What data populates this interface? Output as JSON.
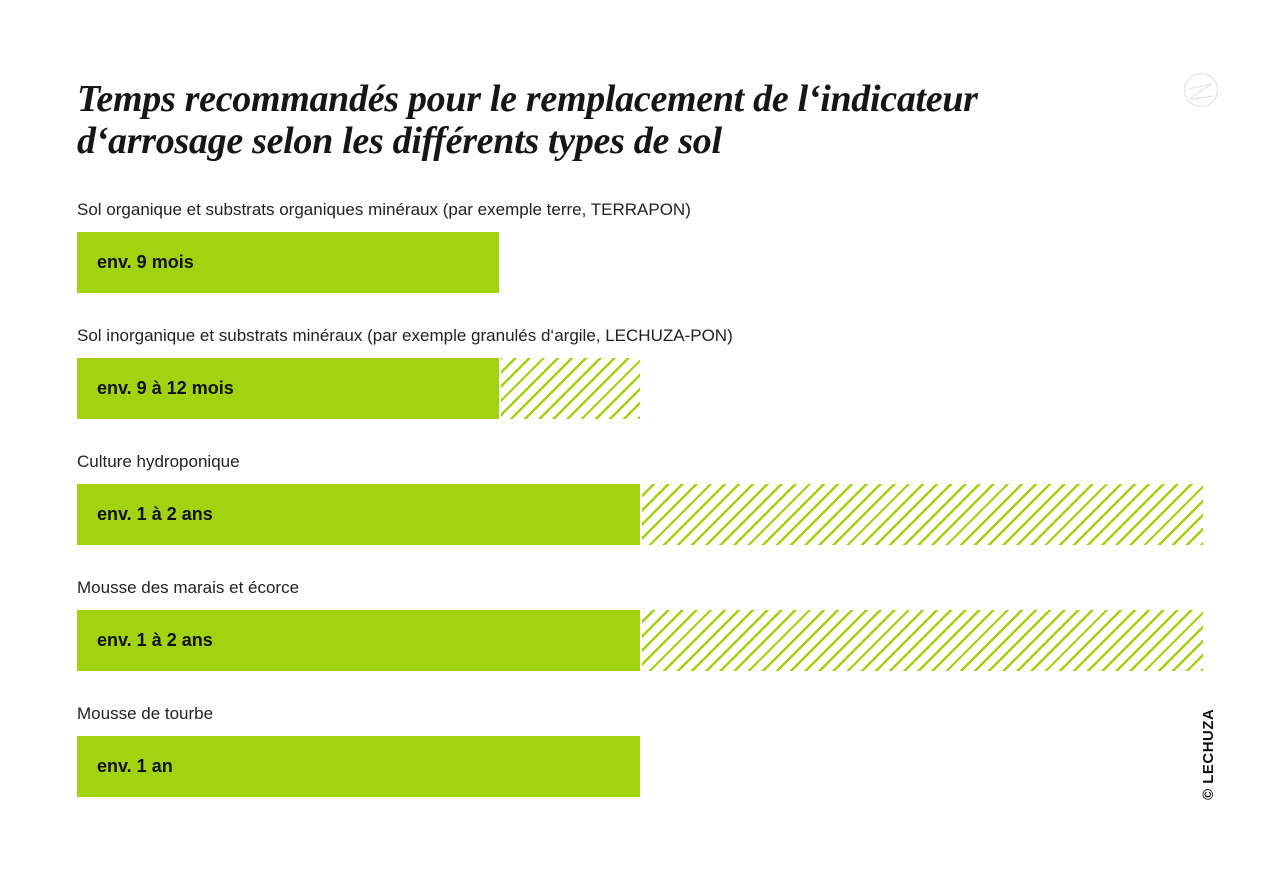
{
  "chart_data": {
    "type": "bar",
    "orientation": "horizontal",
    "title": "Temps recommandés pour le remplacement de l‘indicateur d‘arrosage selon les différents types de sol",
    "unit": "months",
    "xlim": [
      0,
      24
    ],
    "grid": false,
    "colors": {
      "bar": "#a3d30f",
      "range_hatch": "#a3d30f"
    },
    "categories": [
      "Sol organique et substrats organiques minéraux (par exemple terre, TERRAPON)",
      "Sol inorganique et substrats minéraux (par exemple granulés d‘argile, LECHUZA-PON)",
      "Culture hydroponique",
      "Mousse des marais et écorce",
      "Mousse de tourbe"
    ],
    "bars": [
      {
        "min": 9,
        "max": 9,
        "label": "env. 9 mois"
      },
      {
        "min": 9,
        "max": 12,
        "label": "env. 9 à 12 mois"
      },
      {
        "min": 12,
        "max": 24,
        "label": "env. 1 à 2 ans"
      },
      {
        "min": 12,
        "max": 24,
        "label": "env. 1 à 2 ans"
      },
      {
        "min": 12,
        "max": 12,
        "label": "env. 1 an"
      }
    ]
  },
  "credit": "© LECHUZA",
  "logo_icon": "lechuza-owl-logo"
}
